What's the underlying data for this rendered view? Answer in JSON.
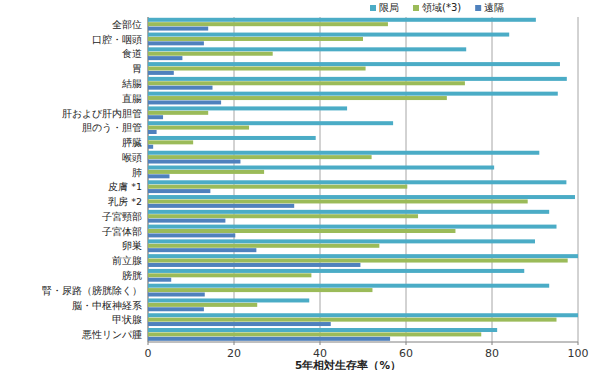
{
  "chart_data": {
    "type": "bar",
    "orientation": "horizontal",
    "xlabel": "5年相対生存率（%）",
    "categories": [
      "全部位",
      "口腔・咽頭",
      "食道",
      "胃",
      "結腸",
      "直腸",
      "肝および肝内胆管",
      "胆のう・胆管",
      "膵臓",
      "喉頭",
      "肺",
      "皮膚 *1",
      "乳房 *2",
      "子宮頸部",
      "子宮体部",
      "卵巣",
      "前立腺",
      "膀胱",
      "腎・尿路（膀胱除く）",
      "脳・中枢神経系",
      "甲状腺",
      "悪性リンパ腫"
    ],
    "series": [
      {
        "name": "限局",
        "color": "#4bacc6",
        "values": [
          90.2,
          84,
          74,
          95.8,
          97.4,
          95.3,
          46.3,
          57,
          39,
          91,
          80.5,
          97.3,
          99.3,
          93.3,
          95,
          90,
          100,
          87.5,
          93.3,
          37.5,
          100,
          81.2
        ]
      },
      {
        "name": "領域(*3)",
        "color": "#9bbb59",
        "values": [
          55.8,
          50,
          29,
          50.6,
          73.7,
          69.5,
          14,
          23.5,
          10.5,
          52,
          27,
          60.3,
          88.3,
          62.8,
          71.5,
          53.8,
          97.6,
          38,
          52.2,
          25.4,
          95,
          77.5
        ]
      },
      {
        "name": "遠隔",
        "color": "#4f81bd",
        "values": [
          14,
          13,
          8,
          6,
          15,
          17,
          3.5,
          2,
          1.2,
          21.5,
          5,
          14.5,
          34,
          18,
          20.3,
          25.2,
          49.4,
          5.4,
          13.2,
          13,
          42.5,
          56.3
        ]
      }
    ],
    "xlim": [
      0,
      100
    ],
    "xticks": [
      0,
      20,
      40,
      60,
      80,
      100
    ],
    "grid": true,
    "legend": "top"
  }
}
